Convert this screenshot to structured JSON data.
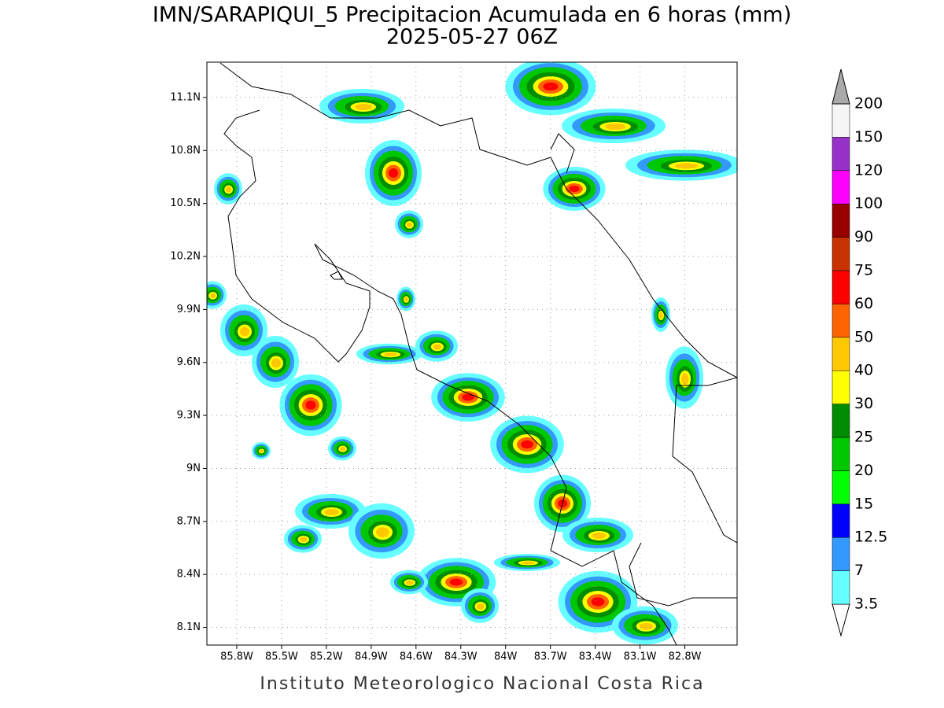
{
  "map": {
    "title": "IMN/SARAPIQUI_5 Precipitacion Acumulada en 6 horas (mm)",
    "subtitle": "2025-05-27 06Z",
    "footer": "Instituto Meteorologico Nacional Costa Rica",
    "xlim": [
      -86.0,
      -82.45
    ],
    "ylim": [
      8.0,
      11.3
    ],
    "xticks": [
      {
        "value": -85.8,
        "label": "85.8W"
      },
      {
        "value": -85.5,
        "label": "85.5W"
      },
      {
        "value": -85.2,
        "label": "85.2W"
      },
      {
        "value": -84.9,
        "label": "84.9W"
      },
      {
        "value": -84.6,
        "label": "84.6W"
      },
      {
        "value": -84.3,
        "label": "84.3W"
      },
      {
        "value": -84.0,
        "label": "84W"
      },
      {
        "value": -83.7,
        "label": "83.7W"
      },
      {
        "value": -83.4,
        "label": "83.4W"
      },
      {
        "value": -83.1,
        "label": "83.1W"
      },
      {
        "value": -82.8,
        "label": "82.8W"
      }
    ],
    "yticks": [
      {
        "value": 8.1,
        "label": "8.1N"
      },
      {
        "value": 8.4,
        "label": "8.4N"
      },
      {
        "value": 8.7,
        "label": "8.7N"
      },
      {
        "value": 9.0,
        "label": "9N"
      },
      {
        "value": 9.3,
        "label": "9.3N"
      },
      {
        "value": 9.6,
        "label": "9.6N"
      },
      {
        "value": 9.9,
        "label": "9.9N"
      },
      {
        "value": 10.2,
        "label": "10.2N"
      },
      {
        "value": 10.5,
        "label": "10.5N"
      },
      {
        "value": 10.8,
        "label": "10.8N"
      },
      {
        "value": 11.1,
        "label": "11.1N"
      }
    ],
    "grid": true,
    "colorbar": {
      "levels": [
        3.5,
        7,
        12.5,
        15,
        20,
        25,
        30,
        40,
        50,
        60,
        75,
        90,
        100,
        120,
        150,
        200
      ],
      "colors": [
        "#ffffff",
        "#66ffff",
        "#3399ff",
        "#0000ff",
        "#00ff00",
        "#00c800",
        "#008c00",
        "#ffff00",
        "#ffc800",
        "#ff6400",
        "#ff0000",
        "#c83200",
        "#960000",
        "#ff00ff",
        "#9632c8",
        "#f5f5f5",
        "#aaaaaa"
      ]
    }
  }
}
